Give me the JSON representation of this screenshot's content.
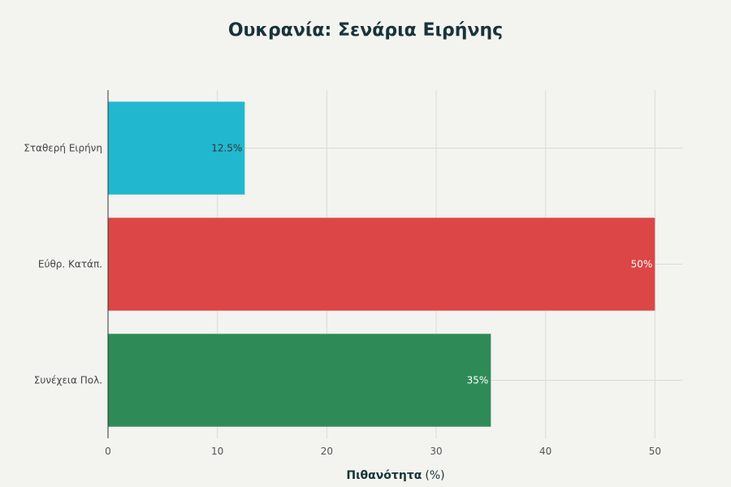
{
  "chart_data": {
    "type": "bar",
    "orientation": "horizontal",
    "title": "Ουκρανία: Σενάρια Ειρήνης",
    "xlabel": "Πιθανότητα",
    "xlabel_unit": "(%)",
    "ylabel": "",
    "categories": [
      "Σταθερή Ειρήνη",
      "Εύθρ. Κατάπ.",
      "Συνέχεια Πολ."
    ],
    "values": [
      12.5,
      50,
      35
    ],
    "data_labels": [
      "12.5%",
      "50%",
      "35%"
    ],
    "colors": [
      "#21b8cf",
      "#dc4646",
      "#2e8b57"
    ],
    "label_colors": [
      "#333333",
      "#ffffff",
      "#ffffff"
    ],
    "xlim": [
      0,
      52.5
    ],
    "xticks": [
      0,
      10,
      20,
      30,
      40,
      50
    ],
    "xtick_labels": [
      "0",
      "10",
      "20",
      "30",
      "40",
      "50"
    ],
    "grid": true,
    "legend": "none"
  }
}
